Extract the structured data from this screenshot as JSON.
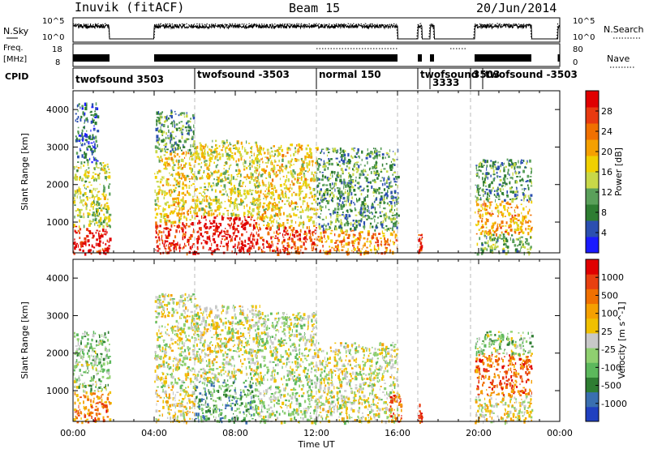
{
  "header": {
    "station": "Inuvik (fitACF)",
    "beam": "Beam 15",
    "date": "20/Jun/2014"
  },
  "panels": {
    "sky": {
      "label": "N.Sky",
      "right_label": "N.Search",
      "left_ticks": [
        "10^5",
        "10^0"
      ],
      "right_ticks": [
        "10^5",
        "10^0"
      ]
    },
    "freq": {
      "label": "Freq.",
      "unit": "[MHz]",
      "right_label": "Nave",
      "left_ticks": [
        "18",
        "8"
      ],
      "right_ticks": [
        "80",
        "0"
      ]
    },
    "cpid": {
      "label": "CPID",
      "segments": [
        {
          "name": "twofsound 3503",
          "start": 0.0,
          "end": 6.0
        },
        {
          "name": "twofsound -3503",
          "start": 6.0,
          "end": 12.0
        },
        {
          "name": "normal 150",
          "start": 12.0,
          "end": 17.0
        },
        {
          "name": "twofsound",
          "start": 17.0,
          "end": 19.6
        },
        {
          "name": "3333",
          "start": 17.6,
          "end": 19.6
        },
        {
          "name": "3503",
          "start": 19.6,
          "end": 20.2
        },
        {
          "name": "twofsound -3503",
          "start": 20.2,
          "end": 24.0
        }
      ]
    }
  },
  "chart_data": [
    {
      "type": "heatmap",
      "name": "Power",
      "ylabel": "Slant Range [km]",
      "ylim": [
        180,
        4500
      ],
      "yticks": [
        "1000",
        "2000",
        "3000",
        "4000"
      ],
      "colorbar_label": "Power [dB]",
      "colorbar_ticks": [
        "28",
        "24",
        "20",
        "16",
        "12",
        "8",
        "4"
      ],
      "colorbar_colors": [
        "#1a1aff",
        "#2b4fb0",
        "#2e7d32",
        "#5aa05a",
        "#c8d848",
        "#f0d000",
        "#f5a000",
        "#f07000",
        "#e83a10",
        "#e00000"
      ],
      "blobs": [
        {
          "t0": 0.0,
          "t1": 1.8,
          "r0": 180,
          "r1": 900,
          "level": 0.95
        },
        {
          "t0": 0.0,
          "t1": 1.8,
          "r0": 900,
          "r1": 2600,
          "level": 0.45
        },
        {
          "t0": 0.1,
          "t1": 1.2,
          "r0": 2600,
          "r1": 4200,
          "level": 0.2
        },
        {
          "t0": 4.0,
          "t1": 6.0,
          "r0": 180,
          "r1": 1000,
          "level": 0.9
        },
        {
          "t0": 4.0,
          "t1": 6.0,
          "r0": 1000,
          "r1": 2900,
          "level": 0.55
        },
        {
          "t0": 4.0,
          "t1": 6.0,
          "r0": 2900,
          "r1": 4000,
          "level": 0.3
        },
        {
          "t0": 6.0,
          "t1": 9.0,
          "r0": 180,
          "r1": 1200,
          "level": 0.97
        },
        {
          "t0": 6.0,
          "t1": 9.2,
          "r0": 1200,
          "r1": 3200,
          "level": 0.5
        },
        {
          "t0": 9.0,
          "t1": 12.0,
          "r0": 180,
          "r1": 900,
          "level": 0.85
        },
        {
          "t0": 9.0,
          "t1": 12.0,
          "r0": 900,
          "r1": 3100,
          "level": 0.55
        },
        {
          "t0": 12.0,
          "t1": 16.0,
          "r0": 180,
          "r1": 800,
          "level": 0.7
        },
        {
          "t0": 12.0,
          "t1": 16.0,
          "r0": 800,
          "r1": 3000,
          "level": 0.3
        },
        {
          "t0": 17.0,
          "t1": 17.2,
          "r0": 180,
          "r1": 700,
          "level": 0.9
        },
        {
          "t0": 19.8,
          "t1": 22.6,
          "r0": 180,
          "r1": 700,
          "level": 0.35
        },
        {
          "t0": 19.8,
          "t1": 22.6,
          "r0": 700,
          "r1": 1600,
          "level": 0.65
        },
        {
          "t0": 19.8,
          "t1": 22.6,
          "r0": 1600,
          "r1": 2700,
          "level": 0.3
        }
      ]
    },
    {
      "type": "heatmap",
      "name": "Velocity",
      "ylabel": "Slant Range [km]",
      "ylim": [
        180,
        4500
      ],
      "yticks": [
        "1000",
        "2000",
        "3000",
        "4000"
      ],
      "colorbar_label": "Velocity [m s^-1]",
      "colorbar_ticks": [
        "1000",
        "500",
        "100",
        "25",
        "-25",
        "-100",
        "-500",
        "-1000"
      ],
      "colorbar_colors": [
        "#2040c0",
        "#3a6fb0",
        "#2e7d32",
        "#5cb85c",
        "#8fd070",
        "#c8c8c8",
        "#f0c000",
        "#f5a000",
        "#f07000",
        "#e84010",
        "#e00000"
      ],
      "blobs": [
        {
          "t0": 0.0,
          "t1": 1.8,
          "r0": 180,
          "r1": 1000,
          "level": 0.75
        },
        {
          "t0": 0.0,
          "t1": 1.8,
          "r0": 1000,
          "r1": 2600,
          "level": 0.4
        },
        {
          "t0": 4.0,
          "t1": 6.0,
          "r0": 180,
          "r1": 1100,
          "level": 0.55
        },
        {
          "t0": 4.0,
          "t1": 6.0,
          "r0": 1100,
          "r1": 3600,
          "level": 0.5
        },
        {
          "t0": 6.0,
          "t1": 9.0,
          "r0": 180,
          "r1": 1300,
          "level": 0.3
        },
        {
          "t0": 6.0,
          "t1": 9.2,
          "r0": 1300,
          "r1": 3300,
          "level": 0.5
        },
        {
          "t0": 9.0,
          "t1": 12.0,
          "r0": 180,
          "r1": 3100,
          "level": 0.45
        },
        {
          "t0": 12.0,
          "t1": 16.0,
          "r0": 180,
          "r1": 2300,
          "level": 0.5
        },
        {
          "t0": 15.5,
          "t1": 16.2,
          "r0": 180,
          "r1": 900,
          "level": 0.8
        },
        {
          "t0": 17.0,
          "t1": 17.2,
          "r0": 180,
          "r1": 700,
          "level": 0.85
        },
        {
          "t0": 19.8,
          "t1": 22.6,
          "r0": 180,
          "r1": 900,
          "level": 0.55
        },
        {
          "t0": 19.8,
          "t1": 22.6,
          "r0": 900,
          "r1": 2000,
          "level": 0.8
        },
        {
          "t0": 19.8,
          "t1": 22.6,
          "r0": 2000,
          "r1": 2600,
          "level": 0.4
        }
      ]
    }
  ],
  "time_axis": {
    "label": "Time UT",
    "range": [
      0,
      24
    ],
    "ticks": [
      "00:00",
      "04:00",
      "08:00",
      "12:00",
      "16:00",
      "20:00",
      "00:00"
    ],
    "dashed_lines_at": [
      6,
      12,
      16,
      17,
      19.6
    ]
  }
}
